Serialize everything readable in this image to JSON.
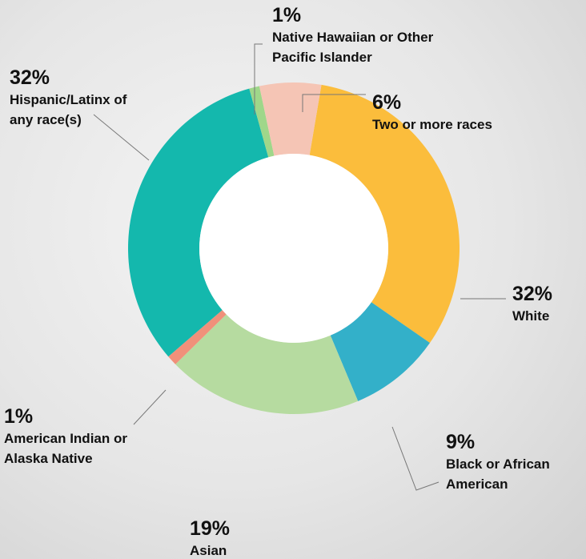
{
  "chart_data": {
    "type": "donut",
    "categories": [
      "White",
      "Black or African American",
      "Asian",
      "American Indian or Alaska Native",
      "Hispanic/Latinx of any race(s)",
      "Native Hawaiian or Other Pacific Islander",
      "Two or more races"
    ],
    "values": [
      32,
      9,
      19,
      1,
      32,
      1,
      6
    ],
    "value_labels": [
      "32%",
      "9%",
      "19%",
      "1%",
      "32%",
      "1%",
      "6%"
    ],
    "colors": [
      "#fbbd3c",
      "#33b0c9",
      "#b6dba0",
      "#f0907a",
      "#14b8ad",
      "#9fd78a",
      "#f5c5b5"
    ]
  }
}
